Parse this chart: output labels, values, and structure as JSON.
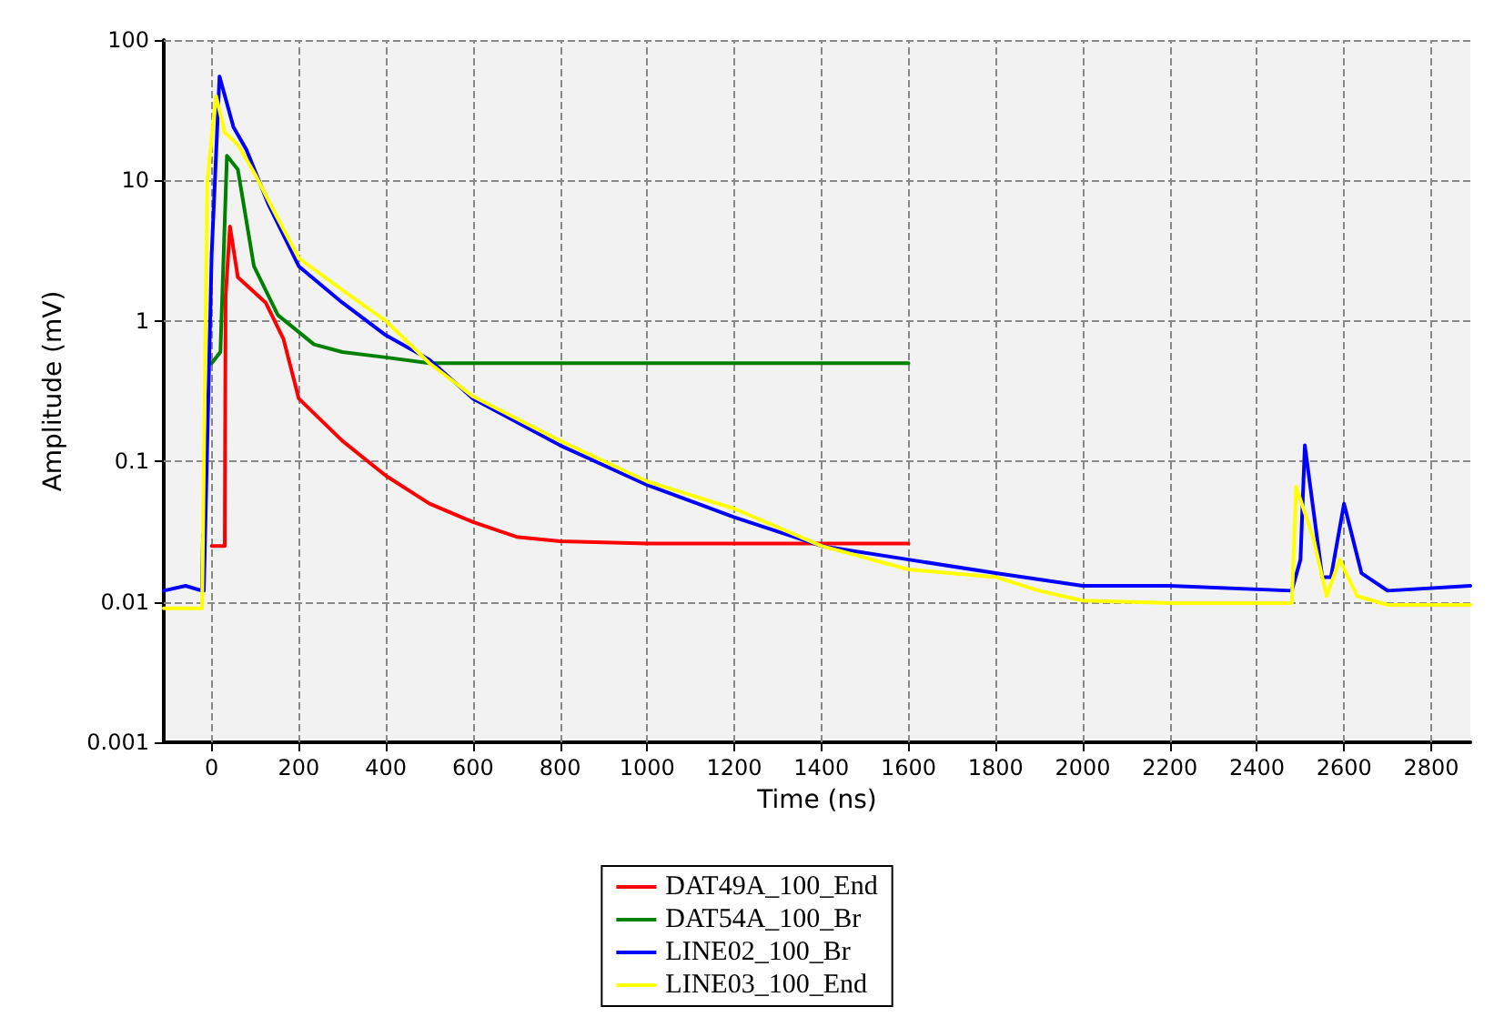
{
  "chart_data": {
    "type": "line",
    "xlabel": "Time (ns)",
    "ylabel": "Amplitude (mV)",
    "log": "y",
    "grid": true,
    "legend": "bottom",
    "marker": "none",
    "line_style": "solid",
    "xlim": [
      -110,
      2890
    ],
    "xticks": [
      0,
      200,
      400,
      600,
      800,
      1000,
      1200,
      1400,
      1600,
      1800,
      2000,
      2200,
      2400,
      2600,
      2800
    ],
    "ylim": [
      0.001,
      100
    ],
    "yticks": [
      0.001,
      0.01,
      0.1,
      1,
      10,
      100
    ],
    "series": [
      {
        "name": "DAT49A_100_End",
        "color": "#ff0000",
        "x": [
          0,
          30,
          32,
          42,
          60,
          124,
          165,
          200,
          300,
          400,
          500,
          600,
          700,
          800,
          1000,
          1200,
          1400,
          1600
        ],
        "values": [
          0.025,
          0.025,
          1.5,
          4.7,
          2.05,
          1.35,
          0.74,
          0.28,
          0.14,
          0.079,
          0.05,
          0.037,
          0.029,
          0.027,
          0.026,
          0.026,
          0.026,
          0.026
        ]
      },
      {
        "name": "DAT54A_100_Br",
        "color": "#008000",
        "x": [
          0,
          20,
          35,
          60,
          97,
          152,
          235,
          300,
          400,
          500,
          600,
          800,
          1000,
          1200,
          1400,
          1600
        ],
        "values": [
          0.5,
          0.6,
          15,
          12,
          2.45,
          1.1,
          0.68,
          0.6,
          0.55,
          0.5,
          0.5,
          0.5,
          0.5,
          0.5,
          0.5,
          0.5
        ]
      },
      {
        "name": "LINE02_100_Br",
        "color": "#0000ff",
        "x": [
          -110,
          -60,
          -22,
          -20,
          -18,
          0,
          18,
          50,
          80,
          130,
          200,
          300,
          400,
          500,
          600,
          800,
          1000,
          1200,
          1400,
          1600,
          1800,
          2000,
          2200,
          2480,
          2500,
          2510,
          2550,
          2570,
          2600,
          2640,
          2700,
          2890
        ],
        "values": [
          0.012,
          0.013,
          0.012,
          0.03,
          0.012,
          3,
          55,
          24,
          16.5,
          6.8,
          2.45,
          1.35,
          0.79,
          0.53,
          0.28,
          0.13,
          0.068,
          0.04,
          0.025,
          0.02,
          0.016,
          0.013,
          0.013,
          0.012,
          0.02,
          0.13,
          0.015,
          0.015,
          0.05,
          0.016,
          0.012,
          0.013
        ]
      },
      {
        "name": "LINE03_100_End",
        "color": "#ffff00",
        "x": [
          -110,
          -60,
          -22,
          -10,
          10,
          30,
          60,
          100,
          150,
          200,
          300,
          400,
          500,
          600,
          800,
          1000,
          1200,
          1400,
          1600,
          1800,
          1900,
          2000,
          2200,
          2480,
          2490,
          2530,
          2560,
          2590,
          2630,
          2700,
          2890
        ],
        "values": [
          0.009,
          0.009,
          0.009,
          10,
          40,
          22,
          18,
          11,
          5.5,
          2.8,
          1.66,
          1,
          0.5,
          0.29,
          0.14,
          0.072,
          0.046,
          0.025,
          0.017,
          0.015,
          0.012,
          0.0102,
          0.0098,
          0.0098,
          0.066,
          0.028,
          0.011,
          0.02,
          0.011,
          0.0095,
          0.0095
        ]
      }
    ]
  }
}
